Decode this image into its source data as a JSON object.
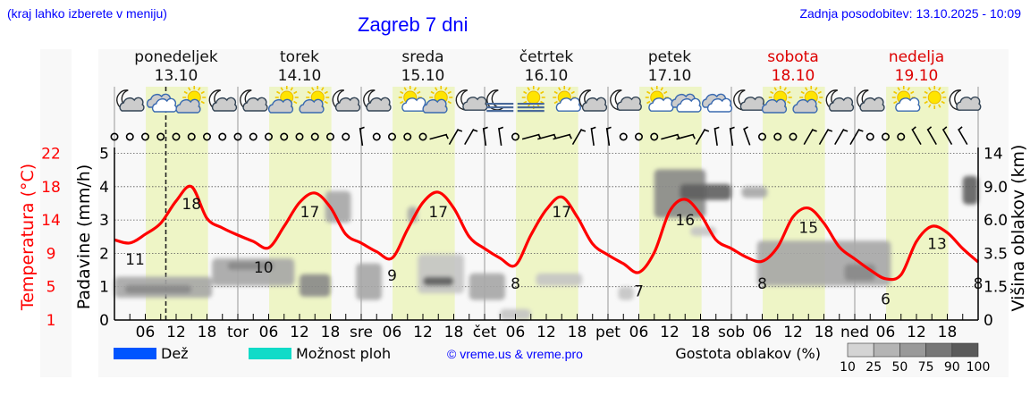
{
  "header": {
    "hint": "(kraj lahko izberete v meniju)",
    "title": "Zagreb 7 dni",
    "updated": "Zadnja posodobitev: 13.10.2025 - 10:09"
  },
  "days": [
    {
      "name": "ponedeljek",
      "date": "13.10",
      "abbr": "",
      "weekend": false
    },
    {
      "name": "torek",
      "date": "14.10",
      "abbr": "tor",
      "weekend": false
    },
    {
      "name": "sreda",
      "date": "15.10",
      "abbr": "sre",
      "weekend": false
    },
    {
      "name": "četrtek",
      "date": "16.10",
      "abbr": "čet",
      "weekend": false
    },
    {
      "name": "petek",
      "date": "17.10",
      "abbr": "pet",
      "weekend": false
    },
    {
      "name": "sobota",
      "date": "18.10",
      "abbr": "sob",
      "weekend": true
    },
    {
      "name": "nedelja",
      "date": "19.10",
      "abbr": "ned",
      "weekend": true
    }
  ],
  "colors": {
    "temperature": "#ff0000",
    "daylight": "#eef5c6",
    "weekend": "#dd0000",
    "rain": "#0055ff",
    "showers": "#11dbc8",
    "panel": "#f8f8f8"
  },
  "chart_data": {
    "type": "line",
    "current_time": "13.10 10",
    "axes": {
      "left_outer": {
        "label": "Temperatura (°C)",
        "ticks": [
          "1",
          "5",
          "9",
          "14",
          "18",
          "22"
        ]
      },
      "left_inner": {
        "label": "Padavine (mm/h)",
        "ticks": [
          "0",
          "1",
          "2",
          "3",
          "4",
          "5"
        ],
        "range": [
          0,
          5
        ]
      },
      "right": {
        "label": "Višina oblakov (km)",
        "ticks": [
          "0",
          "1.5",
          "3.5",
          "6.0",
          "9.0",
          "14"
        ]
      },
      "x_hour_ticks": [
        "06",
        "12",
        "18"
      ],
      "grid": true
    },
    "temperature": {
      "start": "13.10 00",
      "step_hours": 3,
      "values": [
        11.1,
        10.7,
        11.8,
        13.2,
        16.0,
        17.8,
        13.8,
        12.6,
        11.7,
        10.9,
        10.1,
        12.8,
        15.8,
        17.0,
        15.2,
        11.8,
        10.7,
        9.6,
        8.8,
        12.4,
        15.8,
        17.1,
        15.1,
        11.5,
        10.0,
        8.8,
        7.9,
        11.7,
        14.9,
        16.5,
        14.0,
        10.6,
        9.2,
        8.1,
        7.0,
        9.5,
        14.7,
        16.2,
        14.3,
        11.1,
        10.0,
        8.9,
        8.4,
        10.2,
        14.0,
        15.1,
        13.2,
        10.2,
        8.7,
        7.3,
        6.2,
        6.7,
        10.9,
        12.8,
        12.0,
        10.0,
        8.3
      ]
    },
    "temperature_labels": [
      {
        "time": "13.10 04",
        "value": "11"
      },
      {
        "time": "13.10 15",
        "value": "18"
      },
      {
        "time": "14.10 05",
        "value": "10"
      },
      {
        "time": "14.10 14",
        "value": "17"
      },
      {
        "time": "15.10 06",
        "value": "9"
      },
      {
        "time": "15.10 15",
        "value": "17"
      },
      {
        "time": "16.10 06",
        "value": "8"
      },
      {
        "time": "16.10 15",
        "value": "17"
      },
      {
        "time": "17.10 06",
        "value": "7"
      },
      {
        "time": "17.10 15",
        "value": "16"
      },
      {
        "time": "18.10 06",
        "value": "8"
      },
      {
        "time": "18.10 15",
        "value": "15"
      },
      {
        "time": "19.10 06",
        "value": "6"
      },
      {
        "time": "19.10 16",
        "value": "13"
      },
      {
        "time": "20.10 00",
        "value": "8"
      }
    ],
    "daylight": {
      "sunrise_hour": 6.1,
      "sunset_hour": 18.2
    },
    "cloud_density": [
      {
        "from": "13.10 00",
        "to": "13.10 19",
        "base_km": 1.0,
        "top_km": 2.1,
        "density": 50
      },
      {
        "from": "13.10 02",
        "to": "13.10 15",
        "base_km": 1.2,
        "top_km": 1.6,
        "density": 75
      },
      {
        "from": "13.10 19",
        "to": "14.10 11",
        "base_km": 1.55,
        "top_km": 3.2,
        "density": 50
      },
      {
        "from": "13.10 22",
        "to": "14.10 07",
        "base_km": 2.5,
        "top_km": 3.0,
        "density": 75
      },
      {
        "from": "14.10 12",
        "to": "14.10 18",
        "base_km": 1.05,
        "top_km": 2.25,
        "density": 75
      },
      {
        "from": "14.10 17",
        "to": "14.10 22",
        "base_km": 5.8,
        "top_km": 8.6,
        "density": 50
      },
      {
        "from": "14.10 23",
        "to": "15.10 04",
        "base_km": 0.9,
        "top_km": 2.9,
        "density": 50
      },
      {
        "from": "15.10 09",
        "to": "15.10 11",
        "base_km": 5.8,
        "top_km": 7.2,
        "density": 50
      },
      {
        "from": "15.10 11",
        "to": "15.10 20",
        "base_km": 1.2,
        "top_km": 3.45,
        "density": 25
      },
      {
        "from": "15.10 12",
        "to": "15.10 18",
        "base_km": 1.55,
        "top_km": 2.1,
        "density": 90
      },
      {
        "from": "15.10 21",
        "to": "16.10 04",
        "base_km": 0.9,
        "top_km": 2.3,
        "density": 50
      },
      {
        "from": "16.10 03",
        "to": "16.10 09",
        "base_km": 0.0,
        "top_km": 0.5,
        "density": 25
      },
      {
        "from": "16.10 10",
        "to": "16.10 19",
        "base_km": 1.55,
        "top_km": 2.3,
        "density": 25
      },
      {
        "from": "17.10 02",
        "to": "17.10 05",
        "base_km": 0.9,
        "top_km": 1.5,
        "density": 25
      },
      {
        "from": "17.10 09",
        "to": "17.10 19",
        "base_km": 6.2,
        "top_km": 11.6,
        "density": 75
      },
      {
        "from": "17.10 14",
        "to": "18.10 00",
        "base_km": 7.8,
        "top_km": 9.4,
        "density": 90
      },
      {
        "from": "17.10 16",
        "to": "17.10 21",
        "base_km": 4.8,
        "top_km": 5.5,
        "density": 25
      },
      {
        "from": "18.10 02",
        "to": "18.10 07",
        "base_km": 8.0,
        "top_km": 9.0,
        "density": 50
      },
      {
        "from": "18.10 05",
        "to": "19.10 07",
        "base_km": 1.55,
        "top_km": 4.45,
        "density": 50
      },
      {
        "from": "18.10 22",
        "to": "19.10 04",
        "base_km": 1.85,
        "top_km": 2.85,
        "density": 75
      },
      {
        "from": "19.10 21",
        "to": "20.10 00",
        "base_km": 7.4,
        "top_km": 10.6,
        "density": 90
      }
    ],
    "weather_icons": [
      "night-cloudy",
      "cloudy",
      "partly-sunny",
      "night-cloudy",
      "night-cloudy",
      "partly-sunny",
      "partly-sunny",
      "night-cloudy",
      "night-cloudy",
      "sunny-small-cloud",
      "partly-sunny",
      "night-small-cloud",
      "night-fog",
      "sunny-fog",
      "sunny-small-cloud",
      "night-cloudy",
      "night-small-cloud",
      "sunny-small-cloud",
      "cloudy",
      "cloudy",
      "night-small-cloud",
      "partly-sunny",
      "partly-sunny",
      "night-cloudy",
      "night-cloudy",
      "sunny-small-cloud",
      "sunny",
      "night-small-cloud"
    ],
    "wind": [
      "calm",
      "calm",
      "calm",
      "calm",
      "calm",
      "calm",
      "calm",
      "calm",
      "calm",
      "calm",
      "calm",
      "calm",
      "calm",
      "calm",
      "calm",
      "calm",
      "N",
      "calm",
      "calm",
      "calm",
      "calm",
      "E",
      "NE",
      "NE",
      "N",
      "N",
      "calm",
      "E",
      "E",
      "E",
      "NE",
      "N",
      "N",
      "calm",
      "calm",
      "calm",
      "E",
      "E",
      "NE",
      "N",
      "N",
      "NNW",
      "calm",
      "calm",
      "calm",
      "NE",
      "NE",
      "NE",
      "NE",
      "calm",
      "calm",
      "calm",
      "NW",
      "NW",
      "NW",
      "NW"
    ]
  },
  "legend": {
    "rain": "Dež",
    "showers": "Možnost ploh",
    "copyright": "© vreme.us & vreme.pro",
    "cloud_density_title": "Gostota oblakov (%)",
    "cloud_density_scale": [
      "10",
      "25",
      "50",
      "75",
      "90",
      "100"
    ]
  }
}
